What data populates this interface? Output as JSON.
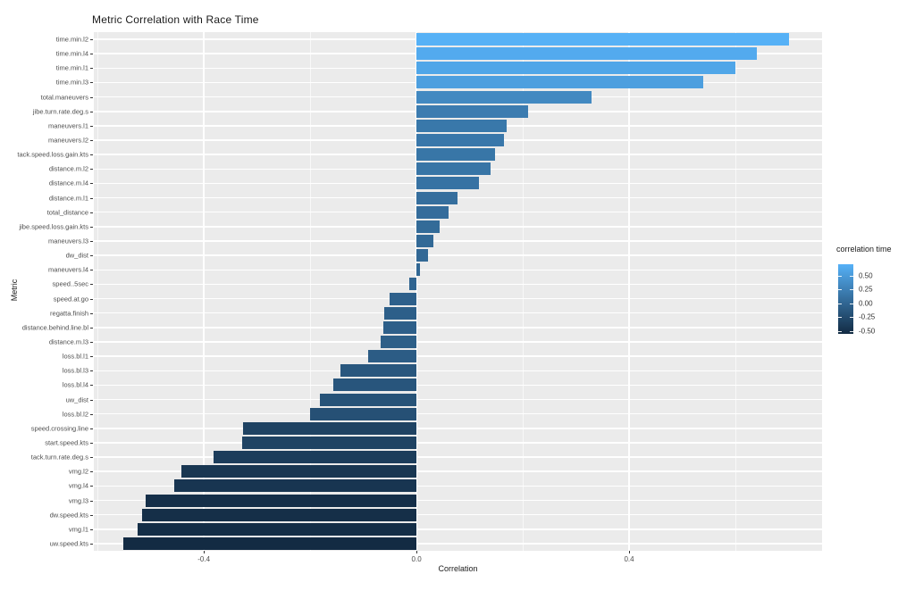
{
  "legend": {
    "title": "correlation time",
    "ticks": [
      {
        "label": "0.50",
        "value": 0.5
      },
      {
        "label": "0.25",
        "value": 0.25
      },
      {
        "label": "0.00",
        "value": 0.0
      },
      {
        "label": "-0.25",
        "value": -0.25
      },
      {
        "label": "-0.50",
        "value": -0.5
      }
    ]
  },
  "colors": {
    "gradient_low": "#132B43",
    "gradient_high": "#56B1F7",
    "panel_bg": "#EBEBEB",
    "grid": "#FFFFFF",
    "page_bg": "#FFFFFF",
    "tick_text": "#4d4d4d",
    "title_text": "#1a1a1a"
  },
  "chart_data": {
    "type": "bar",
    "orientation": "horizontal",
    "title": "Metric Correlation with Race Time",
    "xlabel": "Correlation",
    "ylabel": "Metric",
    "legend_title": "correlation time",
    "legend_position": "right",
    "grid": true,
    "categories": [
      "time.min.l2",
      "time.min.l4",
      "time.min.l1",
      "time.min.l3",
      "total.maneuvers",
      "jibe.turn.rate.deg.s",
      "maneuvers.l1",
      "maneuvers.l2",
      "tack.speed.loss.gain.kts",
      "distance.m.l2",
      "distance.m.l4",
      "distance.m.l1",
      "total_distance",
      "jibe.speed.loss.gain.kts",
      "maneuvers.l3",
      "dw_dist",
      "maneuvers.l4",
      "speed..5sec",
      "speed.at.go",
      "regatta.finish",
      "distance.behind.line.bl",
      "distance.m.l3",
      "loss.bl.l1",
      "loss.bl.l3",
      "loss.bl.l4",
      "uw_dist",
      "loss.bl.l2",
      "speed.crossing.line",
      "start.speed.kts",
      "tack.turn.rate.deg.s",
      "vmg.l2",
      "vmg.l4",
      "vmg.l3",
      "dw.speed.kts",
      "vmg.l1",
      "uw.speed.kts"
    ],
    "values": [
      0.7,
      0.64,
      0.6,
      0.54,
      0.33,
      0.21,
      0.17,
      0.165,
      0.148,
      0.139,
      0.117,
      0.077,
      0.06,
      0.044,
      0.031,
      0.022,
      0.007,
      -0.013,
      -0.05,
      -0.061,
      -0.062,
      -0.068,
      -0.091,
      -0.143,
      -0.157,
      -0.181,
      -0.2,
      -0.327,
      -0.328,
      -0.381,
      -0.443,
      -0.455,
      -0.51,
      -0.517,
      -0.524,
      -0.551
    ],
    "x_ticks": [
      {
        "label": "-0.4",
        "value": -0.4
      },
      {
        "label": "0.0",
        "value": 0.0
      },
      {
        "label": "0.4",
        "value": 0.4
      }
    ],
    "x_minor_ticks": [
      -0.6,
      -0.2,
      0.2,
      0.6
    ],
    "xlim": [
      -0.607,
      0.763
    ],
    "color_domain": [
      -0.551,
      0.704
    ]
  }
}
